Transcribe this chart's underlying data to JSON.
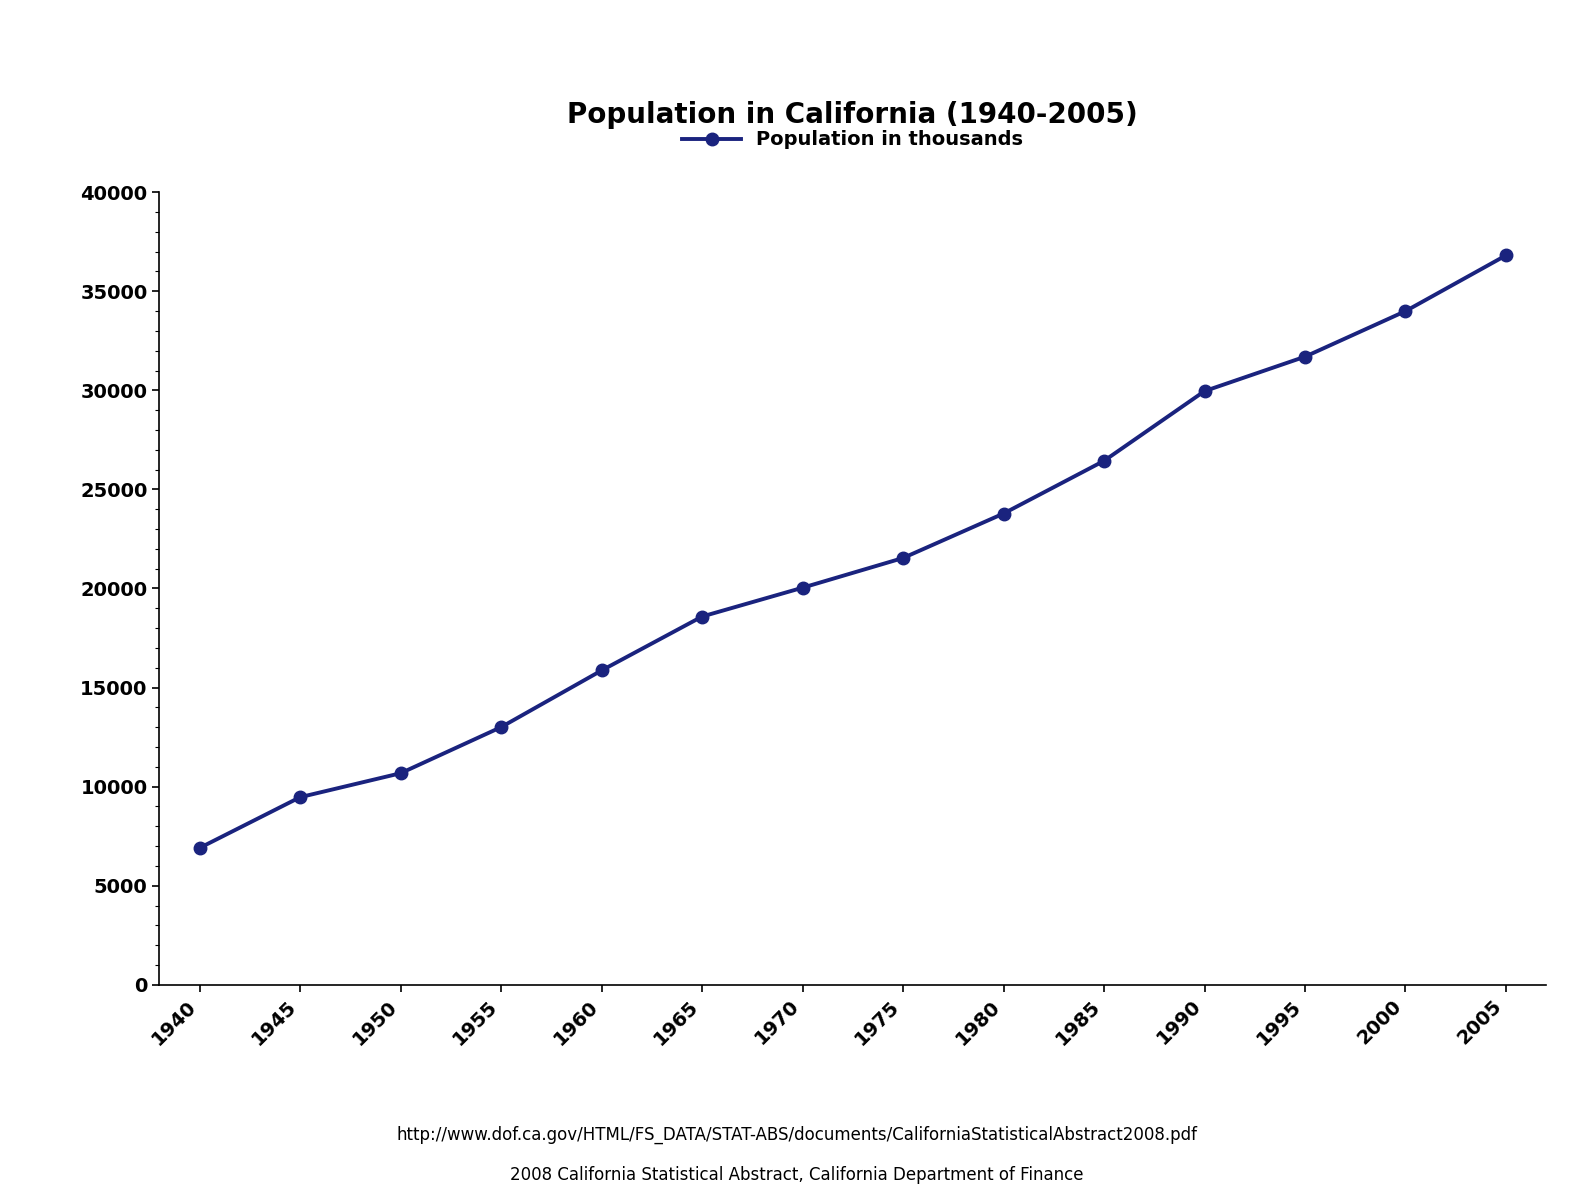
{
  "title": "Population in California (1940-2005)",
  "legend_label": "Population in thousands",
  "years": [
    1940,
    1945,
    1950,
    1955,
    1960,
    1965,
    1970,
    1975,
    1980,
    1985,
    1990,
    1995,
    2000,
    2005
  ],
  "population": [
    6907,
    9468,
    10677,
    13003,
    15863,
    18584,
    20039,
    21538,
    23782,
    26441,
    29959,
    31697,
    33996,
    36810
  ],
  "line_color": "#1a237e",
  "marker": "o",
  "marker_color": "#1a237e",
  "ylim": [
    0,
    40000
  ],
  "yticks": [
    0,
    5000,
    10000,
    15000,
    20000,
    25000,
    30000,
    35000,
    40000
  ],
  "xtick_labels": [
    "1940",
    "1945",
    "1950",
    "1955",
    "1960",
    "1965",
    "1970",
    "1975",
    "1980",
    "1985",
    "1990",
    "1995",
    "2000",
    "2005"
  ],
  "url_text": "http://www.dof.ca.gov/HTML/FS_DATA/STAT-ABS/documents/CaliforniaStatisticalAbstract2008.pdf",
  "source_text": "2008 California Statistical Abstract, California Department of Finance",
  "background_color": "#ffffff",
  "title_fontsize": 20,
  "legend_fontsize": 14,
  "tick_fontsize": 14,
  "footer_fontsize": 12,
  "line_width": 2.8,
  "marker_size": 9
}
